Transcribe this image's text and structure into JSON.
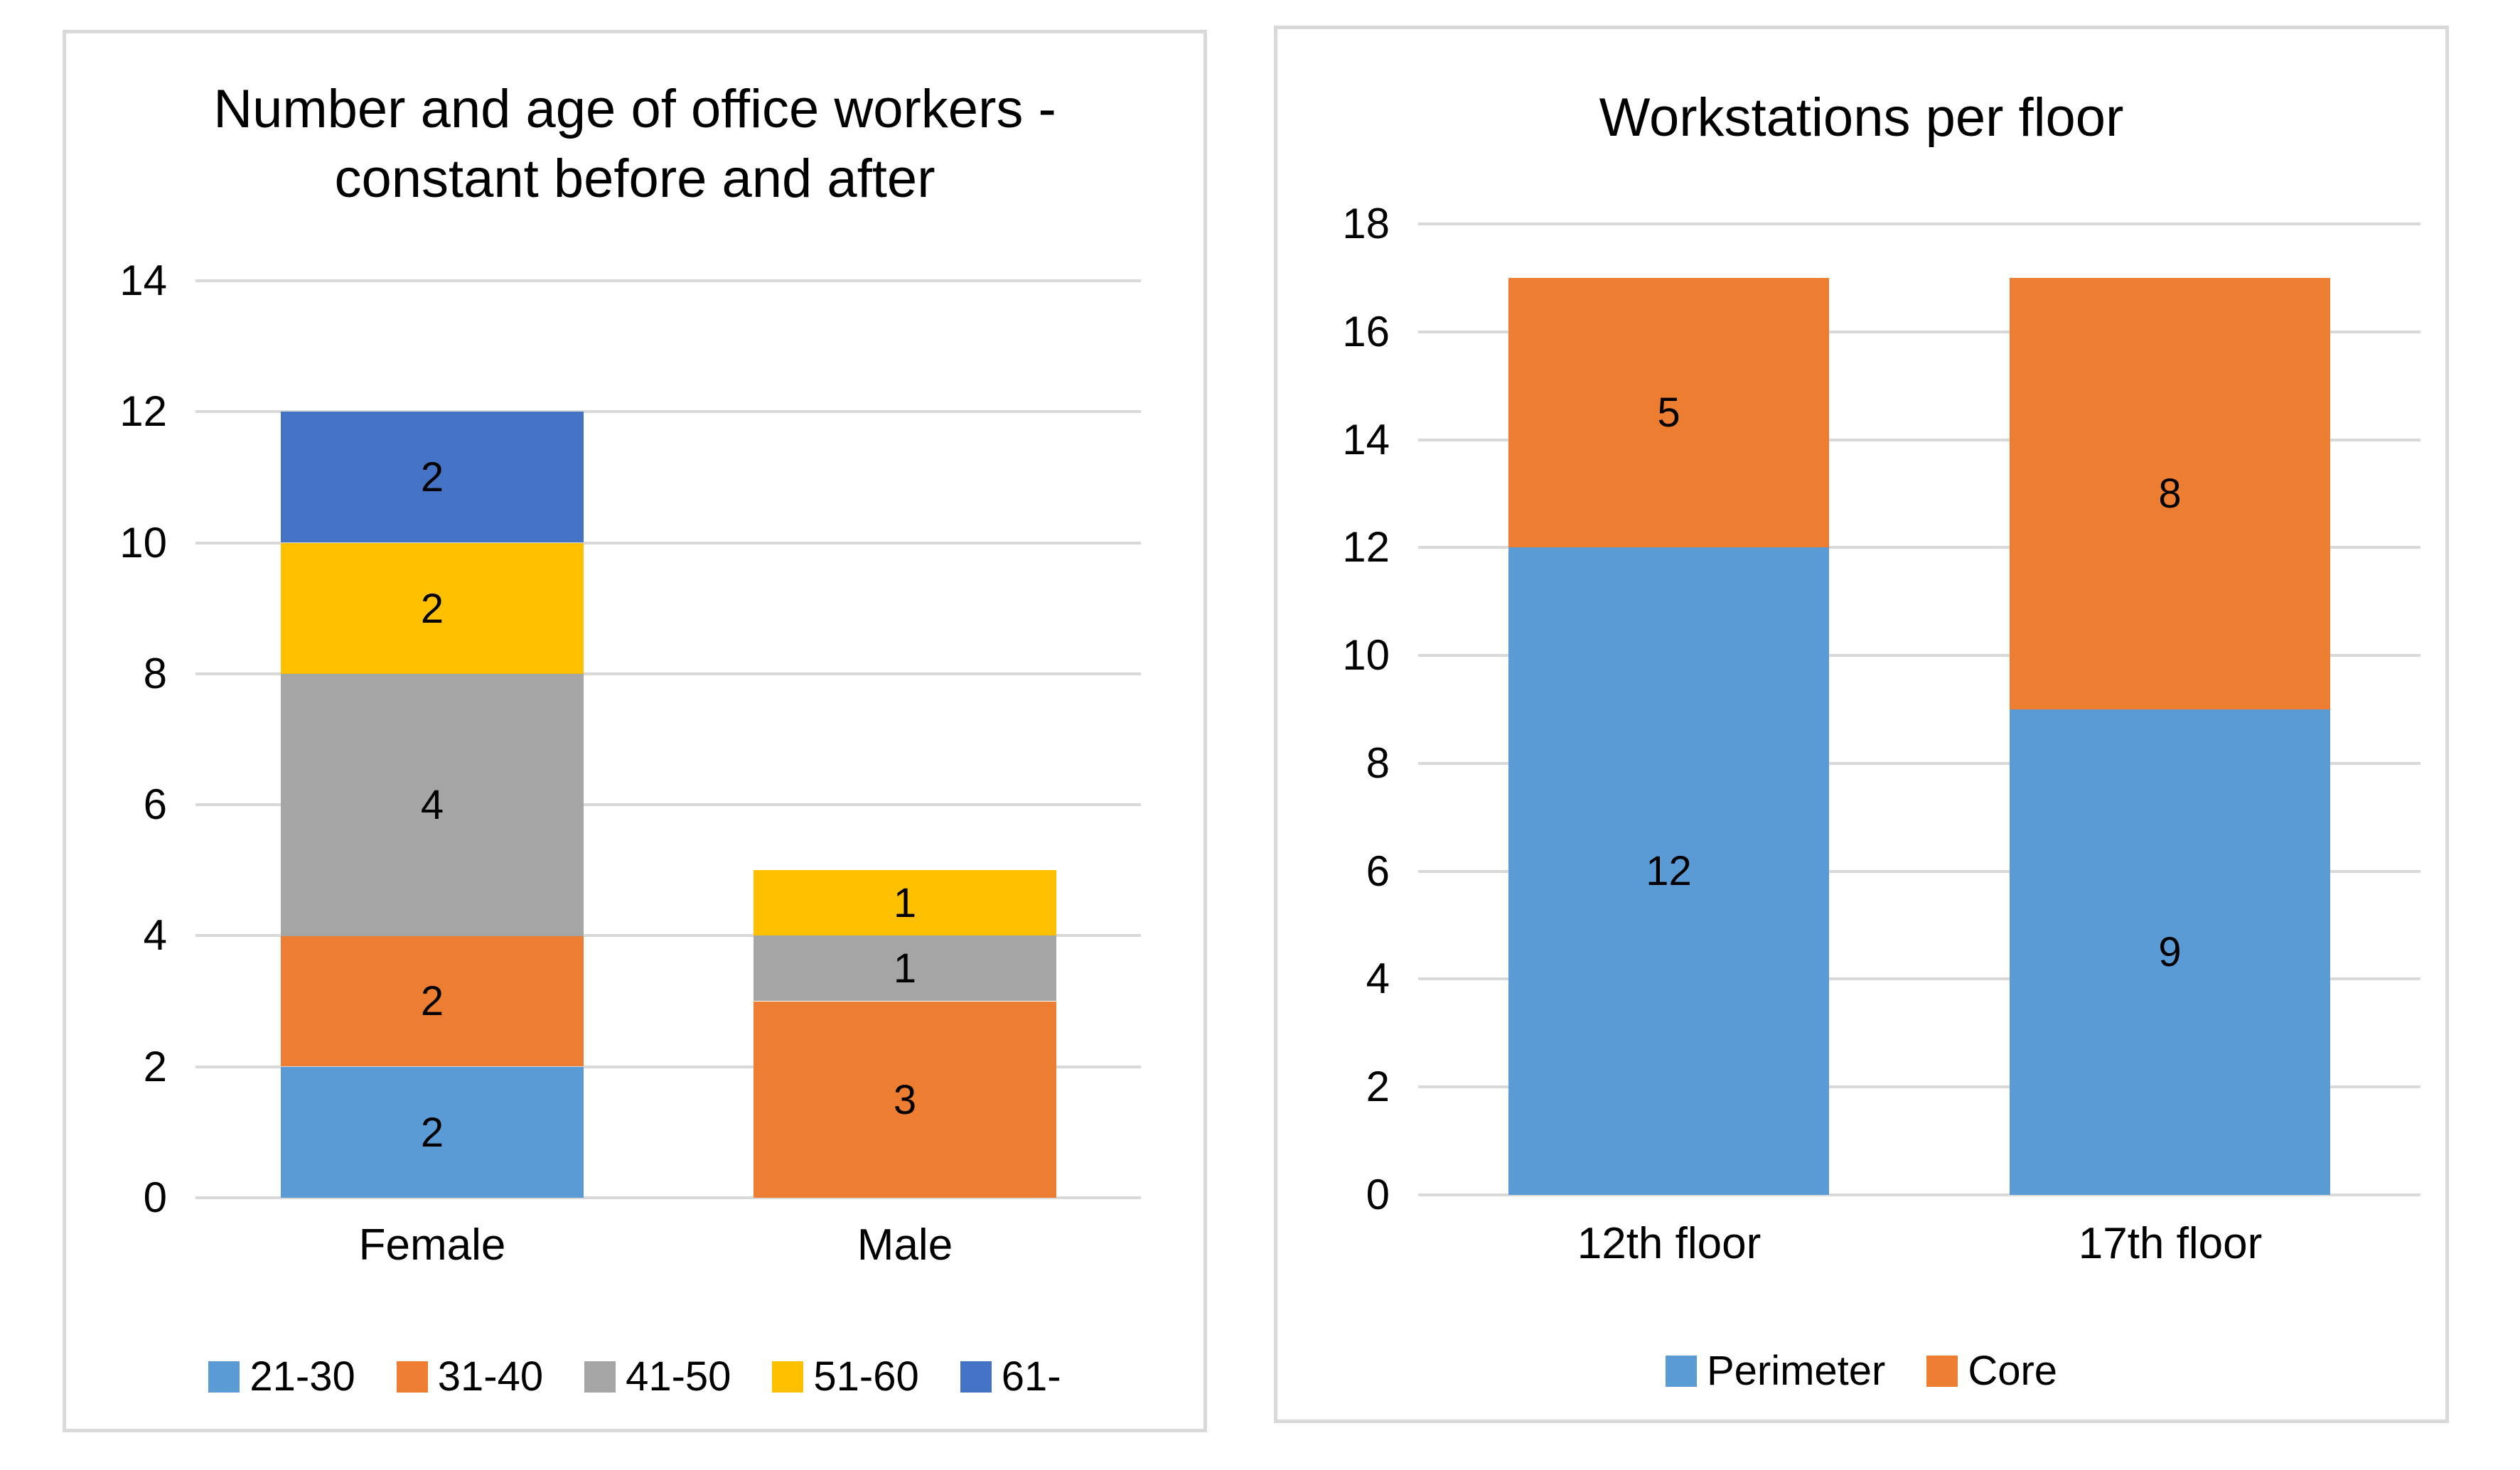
{
  "colors": {
    "background": "#FFFFFF",
    "panel_border": "#D9D9D9",
    "gridline": "#D9D9D9",
    "text": "#000000",
    "series_blue": "#5B9BD5",
    "series_orange": "#ED7D31",
    "series_gray": "#A5A5A5",
    "series_yellow": "#FFC000",
    "series_dark_blue": "#4472C4"
  },
  "chart_data": [
    {
      "type": "bar",
      "subtype": "stacked-column",
      "title": "Number and age of office workers - constant before and after",
      "title_lines": [
        "Number and age of office workers -",
        "constant before and after"
      ],
      "categories": [
        "Female",
        "Male"
      ],
      "series": [
        {
          "name": "21-30",
          "color": "#5B9BD5",
          "values": [
            2,
            0
          ]
        },
        {
          "name": "31-40",
          "color": "#ED7D31",
          "values": [
            2,
            3
          ]
        },
        {
          "name": "41-50",
          "color": "#A5A5A5",
          "values": [
            4,
            1
          ]
        },
        {
          "name": "51-60",
          "color": "#FFC000",
          "values": [
            2,
            1
          ]
        },
        {
          "name": "61-",
          "color": "#4472C4",
          "values": [
            2,
            0
          ]
        }
      ],
      "stack_totals": [
        12,
        5
      ],
      "xlabel": "",
      "ylabel": "",
      "ylim": [
        0,
        14
      ],
      "ytick_step": 2,
      "yticks": [
        "0",
        "2",
        "4",
        "6",
        "8",
        "10",
        "12",
        "14"
      ],
      "grid": "horizontal",
      "data_labels": true,
      "legend_position": "bottom"
    },
    {
      "type": "bar",
      "subtype": "stacked-column",
      "title": "Workstations per floor",
      "title_lines": [
        "Workstations per floor"
      ],
      "categories": [
        "12th floor",
        "17th floor"
      ],
      "series": [
        {
          "name": "Perimeter",
          "color": "#5B9BD5",
          "values": [
            12,
            9
          ]
        },
        {
          "name": "Core",
          "color": "#ED7D31",
          "values": [
            5,
            8
          ]
        }
      ],
      "stack_totals": [
        17,
        17
      ],
      "xlabel": "",
      "ylabel": "",
      "ylim": [
        0,
        18
      ],
      "ytick_step": 2,
      "yticks": [
        "0",
        "2",
        "4",
        "6",
        "8",
        "10",
        "12",
        "14",
        "16",
        "18"
      ],
      "grid": "horizontal",
      "data_labels": true,
      "legend_position": "bottom"
    }
  ]
}
